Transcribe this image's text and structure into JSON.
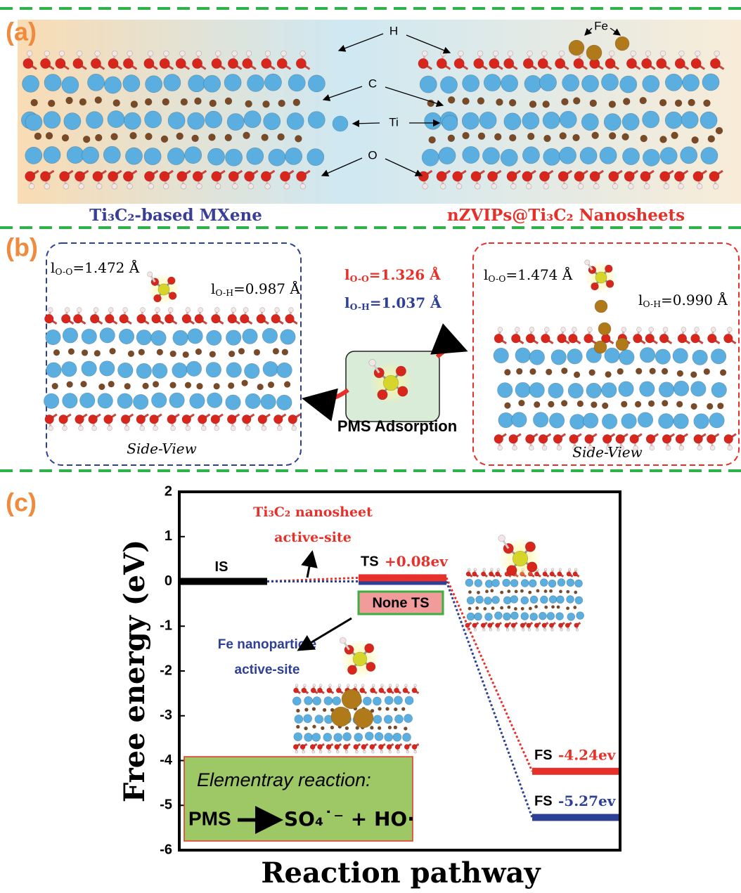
{
  "panel_labels": [
    "(a)",
    "(b)",
    "(c)"
  ],
  "panel_a": {
    "atom_labels": [
      "H",
      "C",
      "Ti",
      "O",
      "Fe"
    ],
    "left_caption": "Ti₃C₂-based MXene",
    "right_caption": "nZVIPs@Ti₃C₂ Nanosheets"
  },
  "panel_b": {
    "left": {
      "oo": {
        "sym": "l",
        "sub": "O-O",
        "text": "=1.472 Å"
      },
      "oh": {
        "sym": "l",
        "sub": "O-H",
        "text": "=0.987 Å"
      },
      "view": "Side-View"
    },
    "middle": {
      "oo": {
        "sym": "l",
        "sub": "O-O",
        "text": "=1.326 Å"
      },
      "oh": {
        "sym": "l",
        "sub": "O-H",
        "text": "=1.037 Å"
      },
      "caption": "PMS Adsorption"
    },
    "right": {
      "oo": {
        "sym": "l",
        "sub": "O-O",
        "text": "=1.474 Å"
      },
      "oh": {
        "sym": "l",
        "sub": "O-H",
        "text": "=0.990 Å"
      },
      "view": "Side-View"
    }
  },
  "chart_data": {
    "type": "energy-diagram",
    "xlabel": "Reaction pathway",
    "ylabel": "Free energy (eV)",
    "ylim": [
      -6,
      2
    ],
    "yticks": [
      -6,
      -5,
      -4,
      -3,
      -2,
      -1,
      0,
      1,
      2
    ],
    "categories": [
      "IS",
      "TS",
      "FS"
    ],
    "series": [
      {
        "name": [
          "Ti₃C₂ nanosheet",
          "active-site"
        ],
        "color": "#e8302a",
        "values": [
          0,
          0.08,
          -4.24
        ],
        "value_labels": [
          null,
          "+0.08ev",
          "-4.24ev"
        ]
      },
      {
        "name": [
          "Fe nanoparticle",
          "active-site"
        ],
        "color": "#2e3f96",
        "values": [
          0,
          0,
          -5.27
        ],
        "value_labels": [
          null,
          null,
          "-5.27ev"
        ]
      }
    ],
    "annotation": "None TS",
    "reaction": {
      "title": "Elementray reaction:",
      "reactant": "PMS",
      "products": "SO₄˙⁻ + HO·"
    }
  }
}
